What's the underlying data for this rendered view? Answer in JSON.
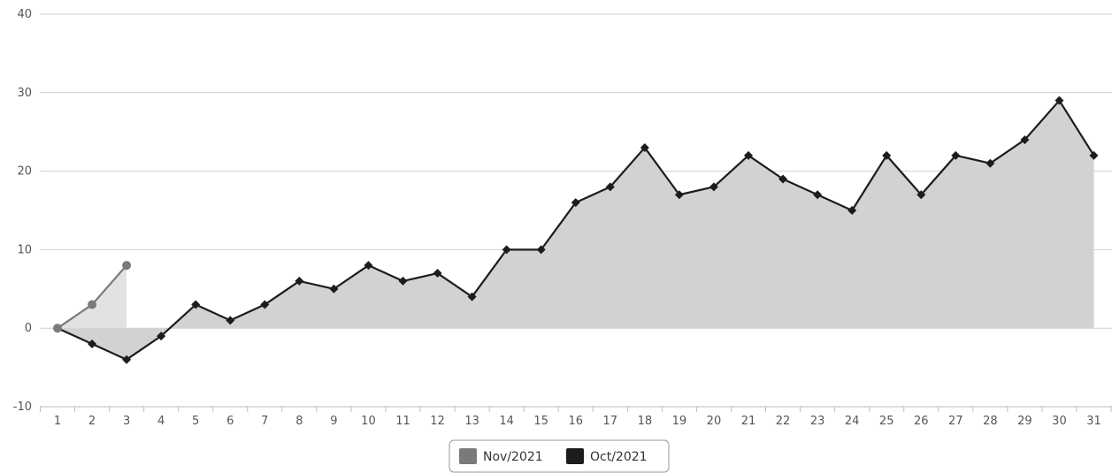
{
  "chart_data": {
    "type": "area",
    "x": [
      1,
      2,
      3,
      4,
      5,
      6,
      7,
      8,
      9,
      10,
      11,
      12,
      13,
      14,
      15,
      16,
      17,
      18,
      19,
      20,
      21,
      22,
      23,
      24,
      25,
      26,
      27,
      28,
      29,
      30,
      31
    ],
    "ylim": [
      -10,
      40
    ],
    "y_ticks": [
      -10,
      0,
      10,
      20,
      30,
      40
    ],
    "grid": true,
    "legend_position": "bottom-center",
    "series": [
      {
        "name": "Nov/2021",
        "color": "#7a7a7a",
        "fill": "#e2e2e2",
        "marker": "circle",
        "x": [
          1,
          2,
          3
        ],
        "values": [
          0,
          3,
          8
        ]
      },
      {
        "name": "Oct/2021",
        "color": "#1c1c1c",
        "fill": "#d2d2d2",
        "marker": "diamond",
        "x": [
          1,
          2,
          3,
          4,
          5,
          6,
          7,
          8,
          9,
          10,
          11,
          12,
          13,
          14,
          15,
          16,
          17,
          18,
          19,
          20,
          21,
          22,
          23,
          24,
          25,
          26,
          27,
          28,
          29,
          30,
          31
        ],
        "values": [
          0,
          -2,
          -4,
          -1,
          3,
          1,
          3,
          6,
          5,
          8,
          6,
          7,
          4,
          10,
          10,
          16,
          18,
          23,
          17,
          18,
          22,
          19,
          17,
          15,
          22,
          17,
          22,
          21,
          24,
          29,
          22
        ]
      }
    ]
  }
}
